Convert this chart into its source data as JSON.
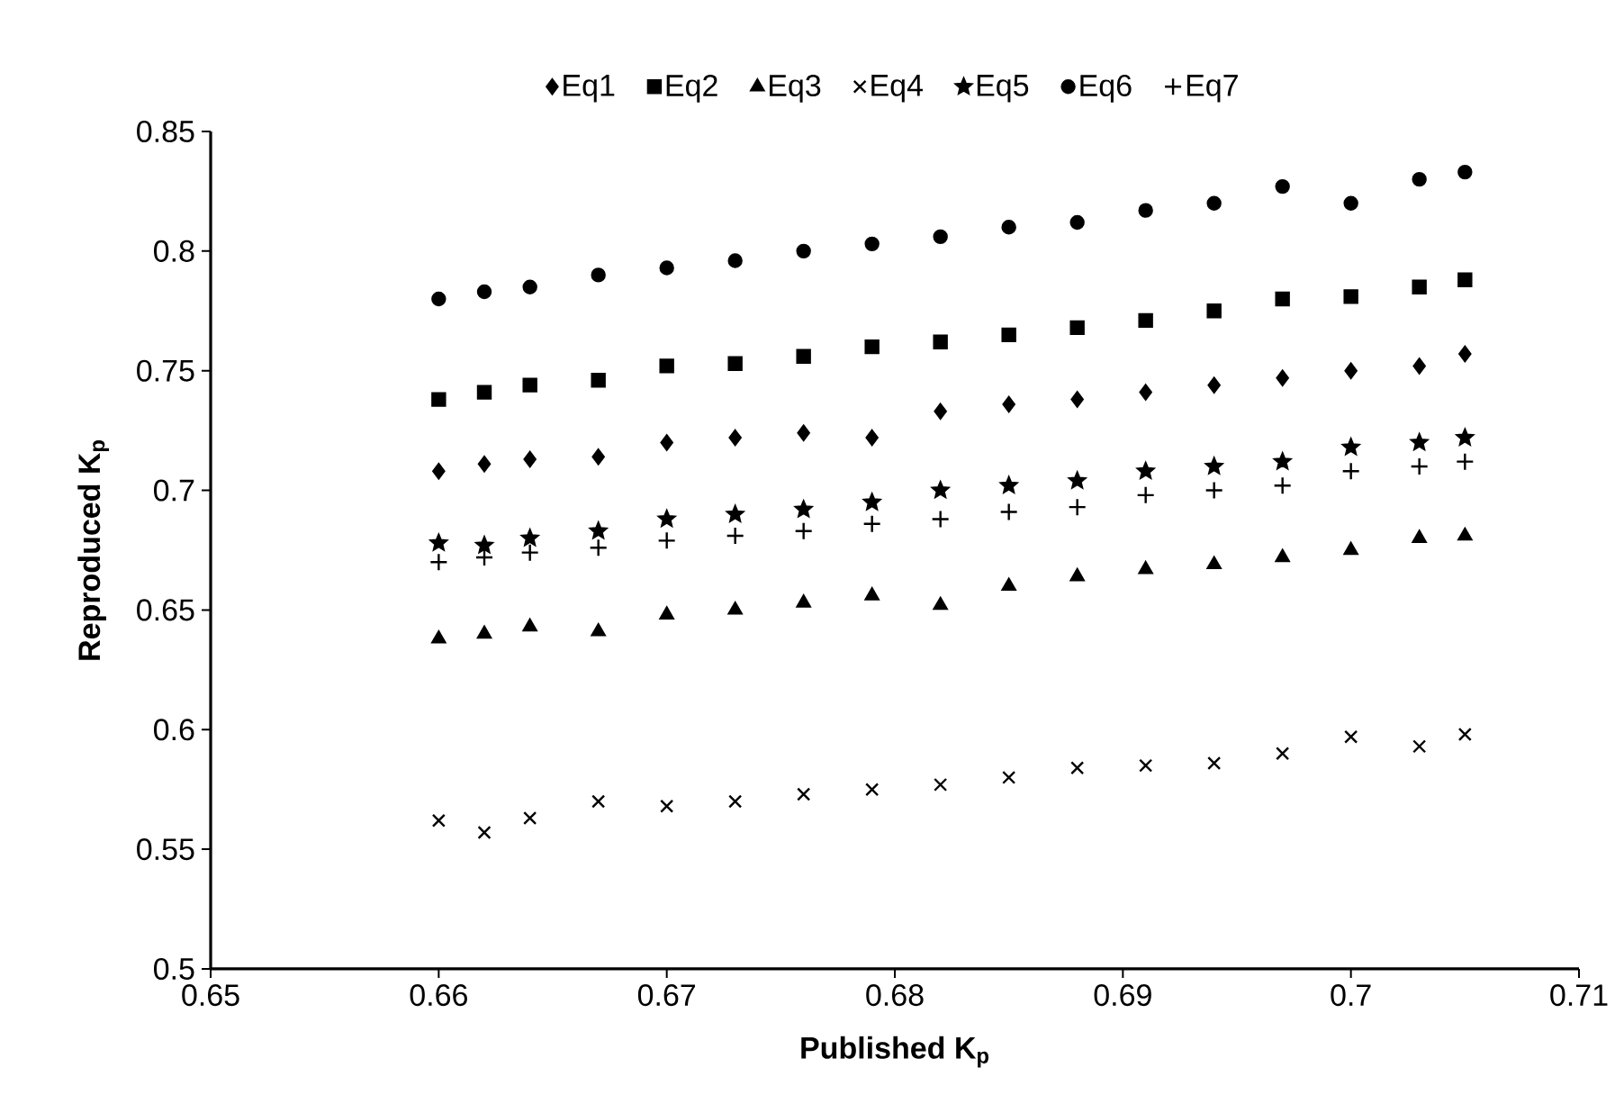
{
  "chart_data": {
    "type": "scatter",
    "xlabel": "Published K$_{p}$",
    "ylabel": "Reproduced K$_{p}$",
    "x": [
      0.66,
      0.662,
      0.664,
      0.667,
      0.67,
      0.673,
      0.676,
      0.679,
      0.682,
      0.685,
      0.688,
      0.691,
      0.694,
      0.697,
      0.7,
      0.703,
      0.705
    ],
    "series": [
      {
        "name": "Eq1",
        "color": "#000000",
        "marker": "diamond",
        "values": [
          0.708,
          0.711,
          0.713,
          0.714,
          0.72,
          0.722,
          0.724,
          0.722,
          0.733,
          0.736,
          0.738,
          0.741,
          0.744,
          0.747,
          0.75,
          0.752,
          0.757
        ]
      },
      {
        "name": "Eq2",
        "color": "#000000",
        "marker": "square",
        "values": [
          0.738,
          0.741,
          0.744,
          0.746,
          0.752,
          0.753,
          0.756,
          0.76,
          0.762,
          0.765,
          0.768,
          0.771,
          0.775,
          0.78,
          0.781,
          0.785,
          0.788
        ]
      },
      {
        "name": "Eq3",
        "color": "#000000",
        "marker": "triangle",
        "values": [
          0.638,
          0.64,
          0.643,
          0.641,
          0.648,
          0.65,
          0.653,
          0.656,
          0.652,
          0.66,
          0.664,
          0.667,
          0.669,
          0.672,
          0.675,
          0.68,
          0.681
        ]
      },
      {
        "name": "Eq4",
        "color": "#000000",
        "marker": "cross",
        "values": [
          0.562,
          0.557,
          0.563,
          0.57,
          0.568,
          0.57,
          0.573,
          0.575,
          0.577,
          0.58,
          0.584,
          0.585,
          0.586,
          0.59,
          0.597,
          0.593,
          0.598
        ]
      },
      {
        "name": "Eq5",
        "color": "#000000",
        "marker": "star",
        "values": [
          0.678,
          0.677,
          0.68,
          0.683,
          0.688,
          0.69,
          0.692,
          0.695,
          0.7,
          0.702,
          0.704,
          0.708,
          0.71,
          0.712,
          0.718,
          0.72,
          0.722
        ]
      },
      {
        "name": "Eq6",
        "color": "#000000",
        "marker": "circle",
        "values": [
          0.78,
          0.783,
          0.785,
          0.79,
          0.793,
          0.796,
          0.8,
          0.803,
          0.806,
          0.81,
          0.812,
          0.817,
          0.82,
          0.827,
          0.82,
          0.83,
          0.833
        ]
      },
      {
        "name": "Eq7",
        "color": "#000000",
        "marker": "plus",
        "values": [
          0.67,
          0.672,
          0.674,
          0.676,
          0.679,
          0.681,
          0.683,
          0.686,
          0.688,
          0.691,
          0.693,
          0.698,
          0.7,
          0.702,
          0.708,
          0.71,
          0.712
        ]
      }
    ],
    "xlim": [
      0.65,
      0.71
    ],
    "xticks": [
      0.65,
      0.66,
      0.67,
      0.68,
      0.69,
      0.7,
      0.71
    ],
    "ylim": [
      0.5,
      0.85
    ],
    "yticks": [
      0.5,
      0.55,
      0.6,
      0.65,
      0.7,
      0.75,
      0.8,
      0.85
    ],
    "legend": "top"
  }
}
